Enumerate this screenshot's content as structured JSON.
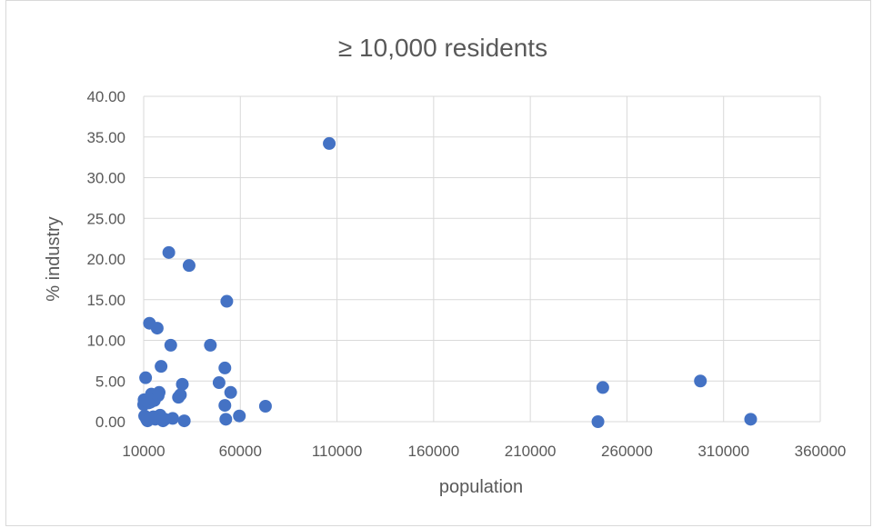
{
  "chart_data": {
    "type": "scatter",
    "title": "≥ 10,000 residents",
    "xlabel": "population",
    "ylabel": "% industry",
    "xlim": [
      10000,
      360000
    ],
    "ylim": [
      0,
      40
    ],
    "x_ticks": [
      "10000",
      "60000",
      "110000",
      "160000",
      "210000",
      "260000",
      "310000",
      "360000"
    ],
    "y_ticks": [
      "0.00",
      "5.00",
      "10.00",
      "15.00",
      "20.00",
      "25.00",
      "30.00",
      "35.00",
      "40.00"
    ],
    "grid": "vertical and horizontal major gridlines",
    "legend": "none",
    "marker_color": "#4472c4",
    "series": [
      {
        "points": [
          [
            10000,
            2.1
          ],
          [
            10200,
            2.7
          ],
          [
            10500,
            0.7
          ],
          [
            11000,
            5.4
          ],
          [
            11200,
            2.6
          ],
          [
            11500,
            0.3
          ],
          [
            12000,
            0.1
          ],
          [
            12500,
            2.3
          ],
          [
            13000,
            12.1
          ],
          [
            13500,
            2.4
          ],
          [
            14000,
            3.4
          ],
          [
            14500,
            2.8
          ],
          [
            15000,
            0.6
          ],
          [
            15500,
            2.6
          ],
          [
            16000,
            0.3
          ],
          [
            17000,
            11.5
          ],
          [
            17500,
            3.2
          ],
          [
            18000,
            3.6
          ],
          [
            18500,
            0.8
          ],
          [
            19000,
            6.8
          ],
          [
            19500,
            0.3
          ],
          [
            20000,
            0.1
          ],
          [
            21000,
            0.3
          ],
          [
            23000,
            20.8
          ],
          [
            24000,
            9.4
          ],
          [
            25000,
            0.4
          ],
          [
            28000,
            3.0
          ],
          [
            29000,
            3.3
          ],
          [
            30000,
            4.6
          ],
          [
            31000,
            0.1
          ],
          [
            33500,
            19.2
          ],
          [
            44500,
            9.4
          ],
          [
            49000,
            4.8
          ],
          [
            52000,
            6.6
          ],
          [
            52000,
            2.0
          ],
          [
            52500,
            0.3
          ],
          [
            53000,
            14.8
          ],
          [
            55000,
            3.6
          ],
          [
            59500,
            0.7
          ],
          [
            73000,
            1.9
          ],
          [
            106000,
            34.2
          ],
          [
            245000,
            0.0
          ],
          [
            247500,
            4.2
          ],
          [
            298000,
            5.0
          ],
          [
            324000,
            0.3
          ]
        ]
      }
    ]
  }
}
